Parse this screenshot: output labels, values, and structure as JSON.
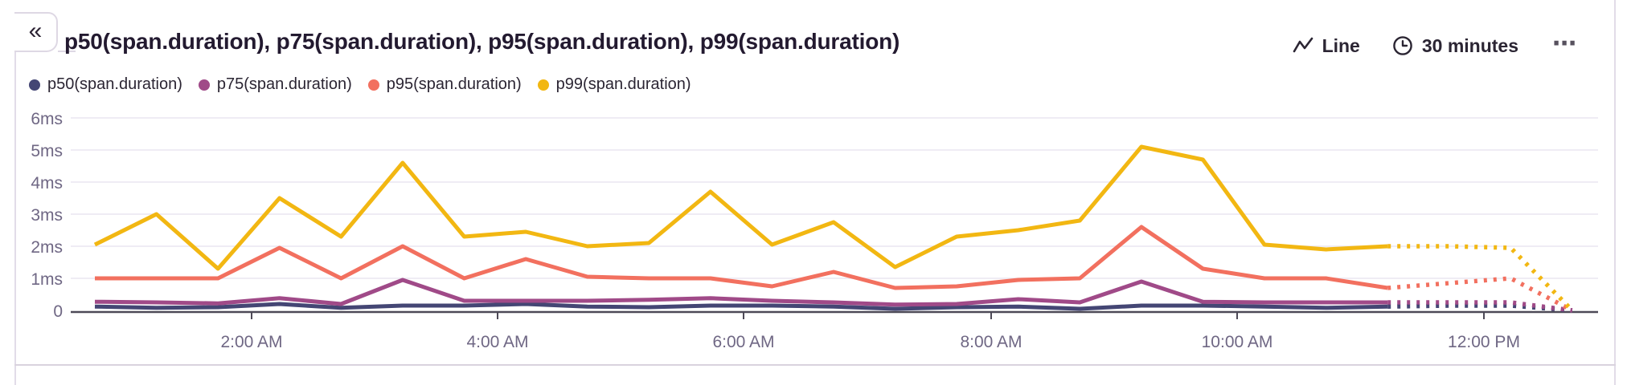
{
  "panel": {
    "title": "p50(span.duration), p75(span.duration), p95(span.duration), p99(span.duration)",
    "controls": {
      "display_label": "Line",
      "interval_label": "30 minutes"
    },
    "icons": {
      "collapse": "«",
      "ellipsis": "⋯"
    }
  },
  "legend": [
    {
      "label": "p50(span.duration)",
      "color": "#444674"
    },
    {
      "label": "p75(span.duration)",
      "color": "#a04a88"
    },
    {
      "label": "p95(span.duration)",
      "color": "#f2705f"
    },
    {
      "label": "p99(span.duration)",
      "color": "#f2b712"
    }
  ],
  "chart_data": {
    "type": "line",
    "unit": "ms",
    "ylim": [
      0,
      6
    ],
    "grid": true,
    "legend_position": "top-left",
    "y_ticks": [
      {
        "label": "0",
        "value": 0
      },
      {
        "label": "1ms",
        "value": 1
      },
      {
        "label": "2ms",
        "value": 2
      },
      {
        "label": "3ms",
        "value": 3
      },
      {
        "label": "4ms",
        "value": 4
      },
      {
        "label": "5ms",
        "value": 5
      },
      {
        "label": "6ms",
        "value": 6
      }
    ],
    "x_tick_labels": [
      "2:00 AM",
      "4:00 AM",
      "6:00 AM",
      "8:00 AM",
      "10:00 AM",
      "12:00 PM"
    ],
    "interval": "30 minutes",
    "dashed_from_index": 21,
    "series": [
      {
        "name": "p50(span.duration)",
        "color": "#444674",
        "values": [
          0.12,
          0.08,
          0.1,
          0.2,
          0.08,
          0.15,
          0.15,
          0.2,
          0.12,
          0.1,
          0.15,
          0.15,
          0.12,
          0.05,
          0.1,
          0.12,
          0.05,
          0.15,
          0.15,
          0.12,
          0.08,
          0.12,
          0.15,
          0.15,
          0
        ]
      },
      {
        "name": "p75(span.duration)",
        "color": "#a04a88",
        "values": [
          0.27,
          0.25,
          0.22,
          0.38,
          0.2,
          0.95,
          0.3,
          0.3,
          0.3,
          0.33,
          0.38,
          0.3,
          0.25,
          0.18,
          0.2,
          0.35,
          0.25,
          0.9,
          0.27,
          0.25,
          0.25,
          0.25,
          0.25,
          0.25,
          0
        ]
      },
      {
        "name": "p95(span.duration)",
        "color": "#f2705f",
        "values": [
          1.0,
          1.0,
          1.0,
          1.95,
          1.0,
          2.0,
          1.0,
          1.6,
          1.05,
          1.0,
          1.0,
          0.75,
          1.2,
          0.7,
          0.75,
          0.95,
          1.0,
          2.6,
          1.3,
          1.0,
          1.0,
          0.7,
          0.85,
          1.0,
          0
        ]
      },
      {
        "name": "p99(span.duration)",
        "color": "#f2b712",
        "values": [
          2.05,
          3.0,
          1.3,
          3.5,
          2.3,
          4.6,
          2.3,
          2.45,
          2.0,
          2.1,
          3.7,
          2.05,
          2.75,
          1.35,
          2.3,
          2.5,
          2.8,
          5.1,
          4.7,
          2.05,
          1.9,
          2.0,
          2.0,
          1.95,
          0
        ]
      }
    ]
  }
}
